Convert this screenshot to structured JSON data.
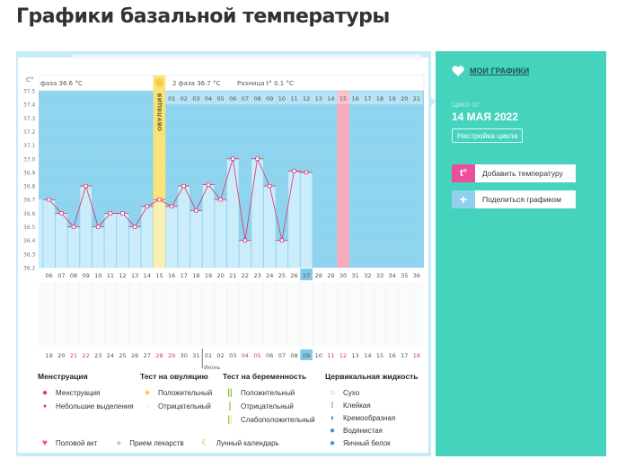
{
  "page_title": "Графики базальной температуры",
  "chart_header": {
    "unit": "C°",
    "phase1": "фаза 36.6 °C",
    "phase2": "2 фаза 36.7 °C",
    "diff": "Разница t° 0.1 °C",
    "ovulation_label": "ОВУЛЯЦИЯ"
  },
  "chart_data": {
    "type": "bar",
    "ylim": [
      36.2,
      37.5
    ],
    "yticks": [
      "37.5",
      "37.4",
      "37.3",
      "37.2",
      "37.1",
      "37.0",
      "36.9",
      "36.8",
      "36.7",
      "36.6",
      "36.5",
      "36.4",
      "36.3",
      "36.2"
    ],
    "cycle_days": [
      "06",
      "07",
      "08",
      "09",
      "10",
      "11",
      "12",
      "13",
      "14",
      "15",
      "16",
      "17",
      "18",
      "19",
      "20",
      "21",
      "22",
      "23",
      "24",
      "25",
      "26",
      "27",
      "28",
      "29",
      "30",
      "31",
      "32",
      "33",
      "34",
      "35",
      "36"
    ],
    "temperatures": [
      36.7,
      36.6,
      36.5,
      36.8,
      36.5,
      36.6,
      36.6,
      36.5,
      36.65,
      36.7,
      36.65,
      36.8,
      36.62,
      36.81,
      36.7,
      37.0,
      36.4,
      37.0,
      36.8,
      36.4,
      36.91,
      36.9,
      null,
      null,
      null,
      null,
      null,
      null,
      null,
      null,
      null
    ],
    "top_dates": [
      "",
      "",
      "",
      "",
      "",
      "",
      "",
      "",
      "",
      "",
      "01",
      "02",
      "03",
      "04",
      "05",
      "06",
      "07",
      "08",
      "09",
      "10",
      "11",
      "12",
      "13",
      "14",
      "15",
      "16",
      "17",
      "18",
      "19",
      "20",
      "21"
    ],
    "calendar_dates": [
      "19",
      "20",
      "21",
      "22",
      "23",
      "24",
      "25",
      "26",
      "27",
      "28",
      "29",
      "30",
      "31",
      "01",
      "02",
      "03",
      "04",
      "05",
      "06",
      "07",
      "08",
      "09",
      "10",
      "11",
      "12",
      "13",
      "14",
      "15",
      "16",
      "17",
      "18"
    ],
    "weekend_dates": [
      "21",
      "22",
      "28",
      "29",
      "04",
      "05",
      "11",
      "12",
      "18"
    ],
    "month_label": "Июнь",
    "ovulation_day": "15",
    "current_day": "27",
    "highlight_day": "30",
    "current_date": "09",
    "colors": {
      "plot": "#8fd4ef",
      "bar": "#cbecfb",
      "line": "#d6336c",
      "ovulation": "#f8e27a",
      "highlight": "#f7a9bd",
      "current": "#7dcbe8"
    }
  },
  "legend": {
    "menstruation": {
      "title": "Менструация",
      "items": [
        "Менструация",
        "Небольшие выделения"
      ]
    },
    "ovulation_test": {
      "title": "Тест на овуляцию",
      "items": [
        "Положительный",
        "Отрицательный"
      ]
    },
    "pregnancy_test": {
      "title": "Тест на беременность",
      "items": [
        "Положительный",
        "Отрицательный",
        "Слабоположительный"
      ]
    },
    "cervical": {
      "title": "Цервикальная жидкость",
      "items": [
        "Сухо",
        "Клейкая",
        "Кремообразная",
        "Водянистая",
        "Яичный белок"
      ]
    },
    "bottom": [
      "Половой акт",
      "Прием лекарств",
      "Лунный календарь"
    ]
  },
  "sidebar": {
    "my_charts": "МОИ ГРАФИКИ",
    "cycle_label": "Цикл от",
    "cycle_date": "14 МАЯ 2022",
    "setup": "Настройка цикла",
    "add_temp": "Добавить температуру",
    "add_temp_icon": "t°",
    "share": "Поделиться графиком",
    "share_icon": "+"
  }
}
